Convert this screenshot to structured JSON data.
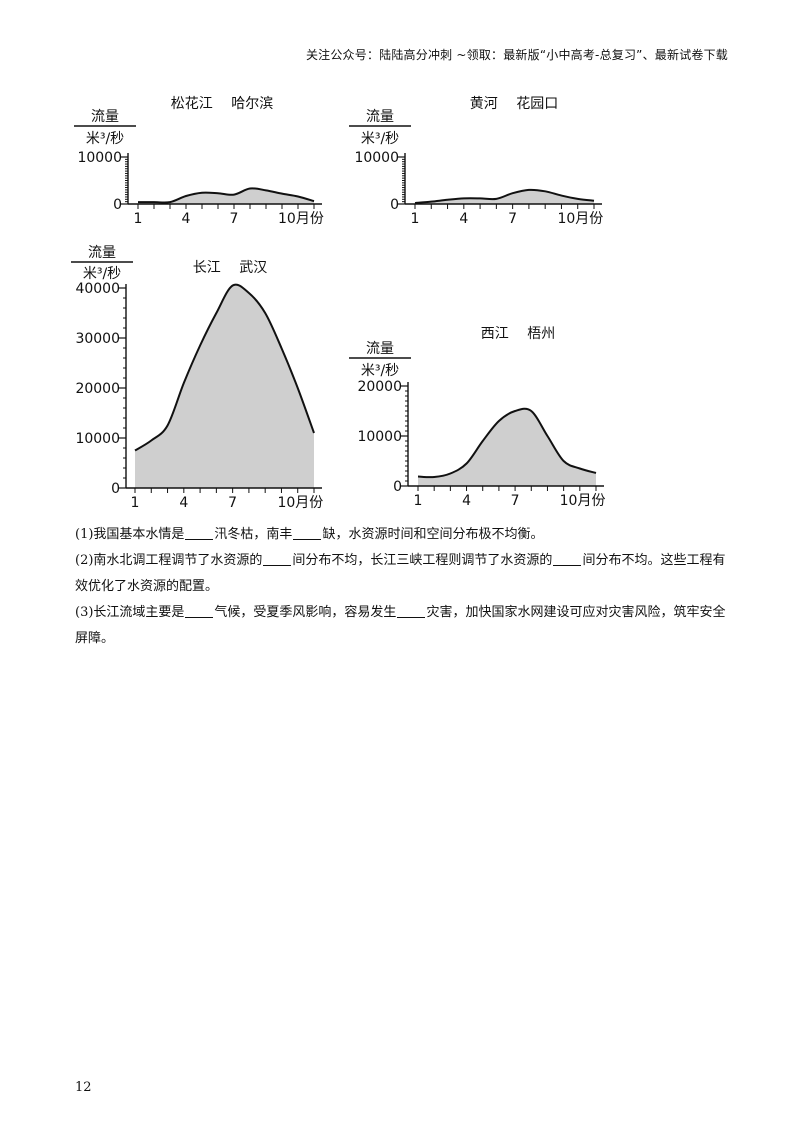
{
  "header": "关注公众号：陆陆高分冲刺  ~领取：最新版“小中高考-总复习”、最新试卷下载",
  "chart_data": [
    {
      "type": "area",
      "title": "松花江　 哈尔滨",
      "ylabel_top": "流量",
      "ylabel_unit": "米³/秒",
      "ylim": [
        0,
        10000
      ],
      "yticks": [
        0,
        10000
      ],
      "xticks": [
        "1",
        "4",
        "7",
        "10月份"
      ],
      "x": [
        1,
        2,
        3,
        4,
        5,
        6,
        7,
        8,
        9,
        10,
        11,
        12
      ],
      "values": [
        400,
        400,
        400,
        1700,
        2400,
        2300,
        2000,
        3300,
        2900,
        2200,
        1600,
        600
      ]
    },
    {
      "type": "area",
      "title": "黄河　 花园口",
      "ylabel_top": "流量",
      "ylabel_unit": "米³/秒",
      "ylim": [
        0,
        10000
      ],
      "yticks": [
        0,
        10000
      ],
      "xticks": [
        "1",
        "4",
        "7",
        "10月份"
      ],
      "x": [
        1,
        2,
        3,
        4,
        5,
        6,
        7,
        8,
        9,
        10,
        11,
        12
      ],
      "values": [
        200,
        500,
        900,
        1200,
        1200,
        1100,
        2300,
        3000,
        2700,
        1800,
        1100,
        700
      ]
    },
    {
      "type": "area",
      "title": "长江　 武汉",
      "ylabel_top": "流量",
      "ylabel_unit": "米³/秒",
      "ylim": [
        0,
        40000
      ],
      "yticks": [
        0,
        10000,
        20000,
        30000,
        40000
      ],
      "xticks": [
        "1",
        "4",
        "7",
        "10月份"
      ],
      "x": [
        1,
        2,
        3,
        4,
        5,
        6,
        7,
        8,
        9,
        10,
        11,
        12
      ],
      "values": [
        7500,
        9500,
        12500,
        21000,
        28500,
        35000,
        40500,
        39000,
        35000,
        28000,
        20000,
        11000
      ]
    },
    {
      "type": "area",
      "title": "西江　 梧州",
      "ylabel_top": "流量",
      "ylabel_unit": "米³/秒",
      "ylim": [
        0,
        20000
      ],
      "yticks": [
        0,
        10000,
        20000
      ],
      "xticks": [
        "1",
        "4",
        "7",
        "10月份"
      ],
      "x": [
        1,
        2,
        3,
        4,
        5,
        6,
        7,
        8,
        9,
        10,
        11,
        12
      ],
      "values": [
        1900,
        1800,
        2500,
        4500,
        9000,
        13000,
        15000,
        15000,
        10000,
        5000,
        3500,
        2600
      ]
    }
  ],
  "questions": {
    "q1": {
      "p1": "(1)我国基本水情是",
      "p2": "汛冬枯，南丰",
      "p3": "缺，水资源时间和空间分布极不均衡。"
    },
    "q2": {
      "p1": "(2)南水北调工程调节了水资源的",
      "p2": "间分布不均，长江三峡工程则调节了水资源的",
      "p3": "间分布不均。这些工程有效优化了水资源的配置。"
    },
    "q3": {
      "p1": "(3)长江流域主要是",
      "p2": "气候，受夏季风影响，容易发生",
      "p3": "灾害，加快国家水网建设可应对灾害风险，筑牢安全屏障。"
    }
  },
  "page_number": "12"
}
